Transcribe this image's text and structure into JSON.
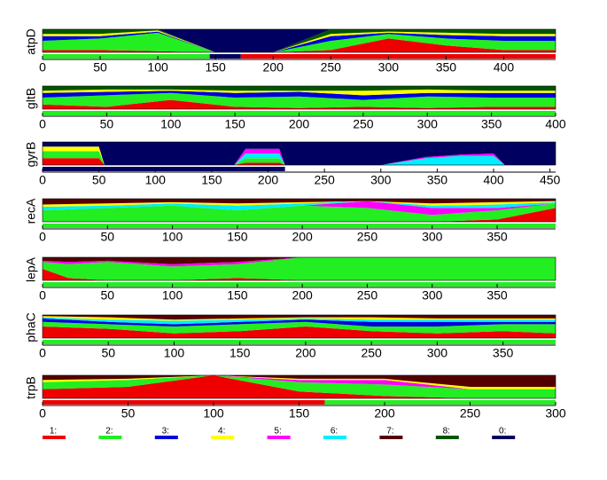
{
  "chart_data": [
    {
      "type": "area",
      "ylabel": "atpD",
      "xlim": [
        0,
        445
      ],
      "xticks": [
        0,
        50,
        100,
        150,
        200,
        250,
        300,
        350,
        400
      ],
      "x": [
        0,
        50,
        100,
        150,
        200,
        250,
        300,
        350,
        400,
        445
      ],
      "series": [
        {
          "color": "#ee0000",
          "values": [
            0.1,
            0.1,
            0.05,
            0,
            0,
            0.1,
            0.6,
            0.3,
            0.1,
            0.1
          ]
        },
        {
          "color": "#22ee22",
          "values": [
            0.4,
            0.5,
            0.8,
            0,
            0,
            0.4,
            0.2,
            0.3,
            0.4,
            0.4
          ]
        },
        {
          "color": "#0000dd",
          "values": [
            0.2,
            0.1,
            0.05,
            0,
            0,
            0.2,
            0.05,
            0.15,
            0.2,
            0.2
          ]
        },
        {
          "color": "#ffff00",
          "values": [
            0.1,
            0.1,
            0.05,
            0,
            0,
            0.1,
            0.05,
            0.1,
            0.1,
            0.1
          ]
        },
        {
          "color": "#005500",
          "values": [
            0.2,
            0.2,
            0.05,
            0,
            0,
            0.2,
            0.1,
            0.15,
            0.2,
            0.2
          ]
        },
        {
          "color": "#000060",
          "values": [
            0,
            0,
            0,
            1,
            1,
            0,
            0,
            0,
            0,
            0
          ]
        }
      ],
      "bar": [
        {
          "start": 0,
          "end": 145,
          "color": "#22ee22"
        },
        {
          "start": 145,
          "end": 172,
          "color": "#000060"
        },
        {
          "start": 172,
          "end": 445,
          "color": "#ee0000"
        }
      ]
    },
    {
      "type": "area",
      "ylabel": "gltB",
      "xlim": [
        0,
        400
      ],
      "xticks": [
        0,
        50,
        100,
        150,
        200,
        250,
        300,
        350,
        400
      ],
      "x": [
        0,
        50,
        100,
        150,
        200,
        250,
        300,
        350,
        400
      ],
      "series": [
        {
          "color": "#ee0000",
          "values": [
            0.2,
            0.1,
            0.4,
            0.1,
            0.05,
            0.1,
            0.05,
            0.1,
            0.1
          ]
        },
        {
          "color": "#22ee22",
          "values": [
            0.3,
            0.5,
            0.3,
            0.4,
            0.5,
            0.3,
            0.5,
            0.4,
            0.4
          ]
        },
        {
          "color": "#0000dd",
          "values": [
            0.2,
            0.15,
            0.1,
            0.2,
            0.2,
            0.2,
            0.15,
            0.2,
            0.2
          ]
        },
        {
          "color": "#ffff00",
          "values": [
            0.1,
            0.1,
            0.05,
            0.1,
            0.05,
            0.2,
            0.15,
            0.1,
            0.1
          ]
        },
        {
          "color": "#005500",
          "values": [
            0.2,
            0.15,
            0.15,
            0.2,
            0.2,
            0.2,
            0.15,
            0.2,
            0.2
          ]
        }
      ],
      "bar": [
        {
          "start": 0,
          "end": 400,
          "color": "#22ee22"
        }
      ]
    },
    {
      "type": "area",
      "ylabel": "gyrB",
      "xlim": [
        0,
        455
      ],
      "xticks": [
        0,
        50,
        100,
        150,
        200,
        250,
        300,
        350,
        400,
        450
      ],
      "x": [
        0,
        50,
        55,
        100,
        170,
        180,
        210,
        215,
        300,
        340,
        370,
        400,
        410,
        455
      ],
      "series": [
        {
          "color": "#ee0000",
          "values": [
            0.3,
            0.3,
            0,
            0,
            0,
            0.1,
            0.1,
            0,
            0,
            0,
            0,
            0,
            0,
            0
          ]
        },
        {
          "color": "#22ee22",
          "values": [
            0.3,
            0.3,
            0,
            0,
            0,
            0.2,
            0.2,
            0,
            0,
            0,
            0,
            0,
            0,
            0
          ]
        },
        {
          "color": "#ffff00",
          "values": [
            0.2,
            0.2,
            0,
            0,
            0,
            0,
            0,
            0,
            0,
            0,
            0,
            0,
            0,
            0
          ]
        },
        {
          "color": "#00eeff",
          "values": [
            0,
            0,
            0,
            0,
            0,
            0.2,
            0.2,
            0,
            0,
            0.3,
            0.4,
            0.4,
            0,
            0
          ]
        },
        {
          "color": "#ff00ff",
          "values": [
            0,
            0,
            0,
            0,
            0,
            0.2,
            0.2,
            0,
            0,
            0.05,
            0.05,
            0.1,
            0,
            0
          ]
        },
        {
          "color": "#000060",
          "values": [
            0.2,
            0.2,
            1,
            1,
            1,
            0.3,
            0.3,
            1,
            1,
            0.65,
            0.55,
            0.5,
            1,
            1
          ]
        }
      ],
      "bar": [
        {
          "start": 0,
          "end": 215,
          "color": "#000060"
        }
      ]
    },
    {
      "type": "area",
      "ylabel": "recA",
      "xlim": [
        0,
        395
      ],
      "xticks": [
        0,
        50,
        100,
        150,
        200,
        250,
        300,
        350
      ],
      "x": [
        0,
        50,
        100,
        150,
        200,
        250,
        300,
        350,
        395
      ],
      "series": [
        {
          "color": "#ee0000",
          "values": [
            0,
            0,
            0,
            0,
            0,
            0,
            0,
            0.1,
            0.6
          ]
        },
        {
          "color": "#22ee22",
          "values": [
            0.5,
            0.6,
            0.7,
            0.5,
            0.7,
            0.6,
            0.3,
            0.4,
            0.2
          ]
        },
        {
          "color": "#ff00ff",
          "values": [
            0,
            0,
            0,
            0,
            0,
            0.3,
            0.3,
            0.1,
            0
          ]
        },
        {
          "color": "#00eeff",
          "values": [
            0.15,
            0.1,
            0.1,
            0.2,
            0.1,
            0,
            0.1,
            0.15,
            0.05
          ]
        },
        {
          "color": "#ffff00",
          "values": [
            0.1,
            0.1,
            0.05,
            0.1,
            0.05,
            0,
            0.1,
            0.1,
            0.05
          ]
        },
        {
          "color": "#550000",
          "values": [
            0.25,
            0.2,
            0.15,
            0.2,
            0.15,
            0.1,
            0.2,
            0.15,
            0.1
          ]
        }
      ],
      "bar": [
        {
          "start": 0,
          "end": 395,
          "color": "#22ee22"
        }
      ]
    },
    {
      "type": "area",
      "ylabel": "lepA",
      "xlim": [
        0,
        395
      ],
      "xticks": [
        0,
        50,
        100,
        150,
        200,
        250,
        300,
        350
      ],
      "x": [
        0,
        20,
        50,
        100,
        150,
        200,
        250,
        300,
        350,
        395
      ],
      "series": [
        {
          "color": "#ee0000",
          "values": [
            0.5,
            0.1,
            0,
            0,
            0.1,
            0,
            0,
            0,
            0,
            0
          ]
        },
        {
          "color": "#22ee22",
          "values": [
            0.3,
            0.6,
            0.8,
            0.6,
            0.6,
            1,
            1,
            1,
            1,
            1
          ]
        },
        {
          "color": "#ff00ff",
          "values": [
            0.05,
            0.1,
            0.05,
            0.1,
            0.1,
            0,
            0,
            0,
            0,
            0
          ]
        },
        {
          "color": "#550000",
          "values": [
            0.15,
            0.2,
            0.15,
            0.3,
            0.2,
            0,
            0,
            0,
            0,
            0
          ]
        }
      ],
      "bar": [
        {
          "start": 0,
          "end": 395,
          "color": "#22ee22"
        }
      ]
    },
    {
      "type": "area",
      "ylabel": "phaC",
      "xlim": [
        0,
        390
      ],
      "xticks": [
        0,
        50,
        100,
        150,
        200,
        250,
        300,
        350
      ],
      "x": [
        0,
        50,
        100,
        150,
        200,
        250,
        300,
        350,
        390
      ],
      "series": [
        {
          "color": "#ee0000",
          "values": [
            0.5,
            0.4,
            0.2,
            0.3,
            0.5,
            0.3,
            0.2,
            0.3,
            0.2
          ]
        },
        {
          "color": "#22ee22",
          "values": [
            0.2,
            0.2,
            0.3,
            0.3,
            0.2,
            0.2,
            0.3,
            0.3,
            0.4
          ]
        },
        {
          "color": "#0000dd",
          "values": [
            0.15,
            0.1,
            0.1,
            0.1,
            0.1,
            0.2,
            0.2,
            0.1,
            0.1
          ]
        },
        {
          "color": "#00eeff",
          "values": [
            0.05,
            0.1,
            0.15,
            0.1,
            0.05,
            0.1,
            0.1,
            0.1,
            0.1
          ]
        },
        {
          "color": "#ffff00",
          "values": [
            0.05,
            0.1,
            0.05,
            0.05,
            0.05,
            0.1,
            0.05,
            0.05,
            0.05
          ]
        },
        {
          "color": "#550000",
          "values": [
            0.05,
            0.1,
            0.2,
            0.15,
            0.1,
            0.1,
            0.15,
            0.15,
            0.15
          ]
        }
      ],
      "bar": [
        {
          "start": 0,
          "end": 390,
          "color": "#22ee22"
        }
      ]
    },
    {
      "type": "area",
      "ylabel": "trpB",
      "xlim": [
        0,
        300
      ],
      "xticks": [
        0,
        50,
        100,
        150,
        200,
        250,
        300
      ],
      "x": [
        0,
        50,
        100,
        150,
        200,
        250,
        300
      ],
      "series": [
        {
          "color": "#ee0000",
          "values": [
            0.4,
            0.5,
            1,
            0.3,
            0.1,
            0,
            0
          ]
        },
        {
          "color": "#22ee22",
          "values": [
            0.3,
            0.3,
            0,
            0.4,
            0.5,
            0.4,
            0.4
          ]
        },
        {
          "color": "#ff00ff",
          "values": [
            0,
            0,
            0,
            0.1,
            0.2,
            0,
            0
          ]
        },
        {
          "color": "#ffff00",
          "values": [
            0.1,
            0.05,
            0,
            0.05,
            0.05,
            0.1,
            0.1
          ]
        },
        {
          "color": "#550000",
          "values": [
            0.2,
            0.15,
            0,
            0.15,
            0.15,
            0.5,
            0.5
          ]
        }
      ],
      "bar": [
        {
          "start": 0,
          "end": 165,
          "color": "#ee0000"
        },
        {
          "start": 165,
          "end": 300,
          "color": "#22ee22"
        }
      ]
    }
  ],
  "legend": {
    "items": [
      {
        "label": "1:",
        "color": "#ee0000"
      },
      {
        "label": "2:",
        "color": "#22ee22"
      },
      {
        "label": "3:",
        "color": "#0000dd"
      },
      {
        "label": "4:",
        "color": "#ffff00"
      },
      {
        "label": "5:",
        "color": "#ff00ff"
      },
      {
        "label": "6:",
        "color": "#00eeff"
      },
      {
        "label": "7:",
        "color": "#550000"
      },
      {
        "label": "8:",
        "color": "#005500"
      },
      {
        "label": "0:",
        "color": "#000060"
      }
    ]
  }
}
